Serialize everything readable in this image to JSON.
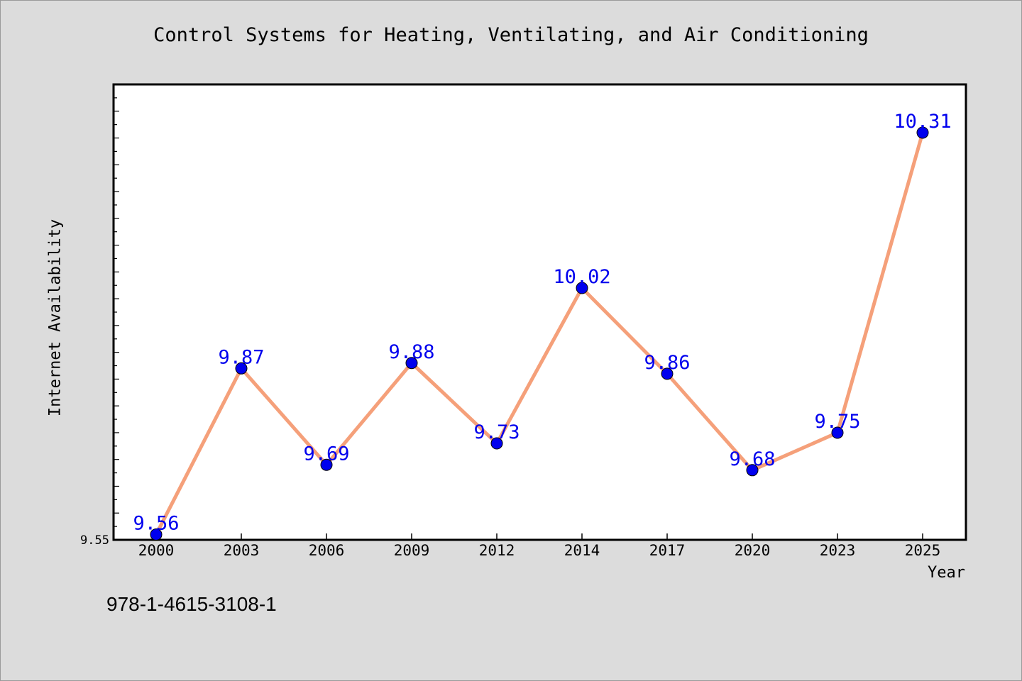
{
  "chart_data": {
    "type": "line",
    "title": "Control Systems for Heating, Ventilating, and Air Conditioning",
    "xlabel": "Year",
    "ylabel": "Internet Availability",
    "categories": [
      "2000",
      "2003",
      "2006",
      "2009",
      "2012",
      "2014",
      "2017",
      "2020",
      "2023",
      "2025"
    ],
    "series": [
      {
        "values": [
          9.56,
          9.87,
          9.69,
          9.88,
          9.73,
          10.02,
          9.86,
          9.68,
          9.75,
          10.31
        ]
      }
    ],
    "data_labels": [
      "9.56",
      "9.87",
      "9.69",
      "9.88",
      "9.73",
      "10.02",
      "9.86",
      "9.68",
      "9.75",
      "10.31"
    ],
    "ylim": [
      9.55,
      10.4
    ],
    "y_tick_labels": [
      "9.55"
    ],
    "grid": false,
    "legend": "none",
    "line_color": "#f5a07a",
    "marker_color": "#0000ee",
    "label_color": "#0000ee"
  },
  "footer": {
    "isbn": "978-1-4615-3108-1"
  }
}
